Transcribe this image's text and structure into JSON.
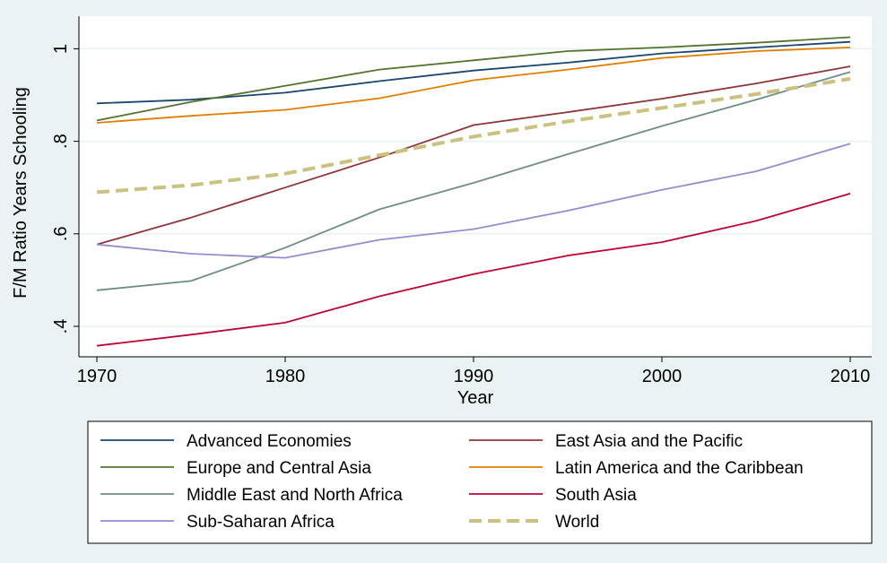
{
  "chart_data": {
    "type": "line",
    "title": "",
    "xlabel": "Year",
    "ylabel": "F/M Ratio Years Schooling",
    "xlim": [
      1970,
      2010
    ],
    "ylim": [
      0.35,
      1.03
    ],
    "x_ticks": [
      1970,
      1980,
      1990,
      2000,
      2010
    ],
    "x_tick_labels": [
      "1970",
      "1980",
      "1990",
      "2000",
      "2010"
    ],
    "y_ticks": [
      0.4,
      0.6,
      0.8,
      1.0
    ],
    "y_tick_labels": [
      ".4",
      ".6",
      ".8",
      "1"
    ],
    "grid": "horizontal",
    "legend_position": "bottom",
    "x": [
      1970,
      1975,
      1980,
      1985,
      1990,
      1995,
      2000,
      2005,
      2010
    ],
    "series": [
      {
        "name": "Advanced Economies",
        "color": "#1a476f",
        "dash": "solid",
        "values": [
          0.882,
          0.89,
          0.905,
          0.93,
          0.953,
          0.97,
          0.99,
          1.003,
          1.015
        ]
      },
      {
        "name": "East Asia and the Pacific",
        "color": "#90353b",
        "dash": "solid",
        "values": [
          0.577,
          0.635,
          0.7,
          0.765,
          0.835,
          0.863,
          0.892,
          0.925,
          0.962
        ]
      },
      {
        "name": "Europe and Central Asia",
        "color": "#55752f",
        "dash": "solid",
        "values": [
          0.845,
          0.885,
          0.92,
          0.955,
          0.975,
          0.995,
          1.003,
          1.013,
          1.025
        ]
      },
      {
        "name": "Latin America and the Caribbean",
        "color": "#e37e00",
        "dash": "solid",
        "values": [
          0.84,
          0.855,
          0.868,
          0.893,
          0.932,
          0.955,
          0.98,
          0.995,
          1.003
        ]
      },
      {
        "name": "Middle East and North Africa",
        "color": "#6e8e84",
        "dash": "solid",
        "values": [
          0.478,
          0.498,
          0.57,
          0.653,
          0.71,
          0.772,
          0.833,
          0.89,
          0.95
        ]
      },
      {
        "name": "South Asia",
        "color": "#c10534",
        "dash": "solid",
        "values": [
          0.358,
          0.382,
          0.408,
          0.465,
          0.513,
          0.553,
          0.582,
          0.628,
          0.687
        ]
      },
      {
        "name": "Sub-Saharan Africa",
        "color": "#938dd2",
        "dash": "solid",
        "values": [
          0.577,
          0.557,
          0.548,
          0.587,
          0.61,
          0.65,
          0.695,
          0.735,
          0.795
        ]
      },
      {
        "name": "World",
        "color": "#cac27e",
        "dash": "dashed",
        "values": [
          0.69,
          0.705,
          0.73,
          0.77,
          0.81,
          0.843,
          0.872,
          0.902,
          0.935
        ]
      }
    ]
  }
}
